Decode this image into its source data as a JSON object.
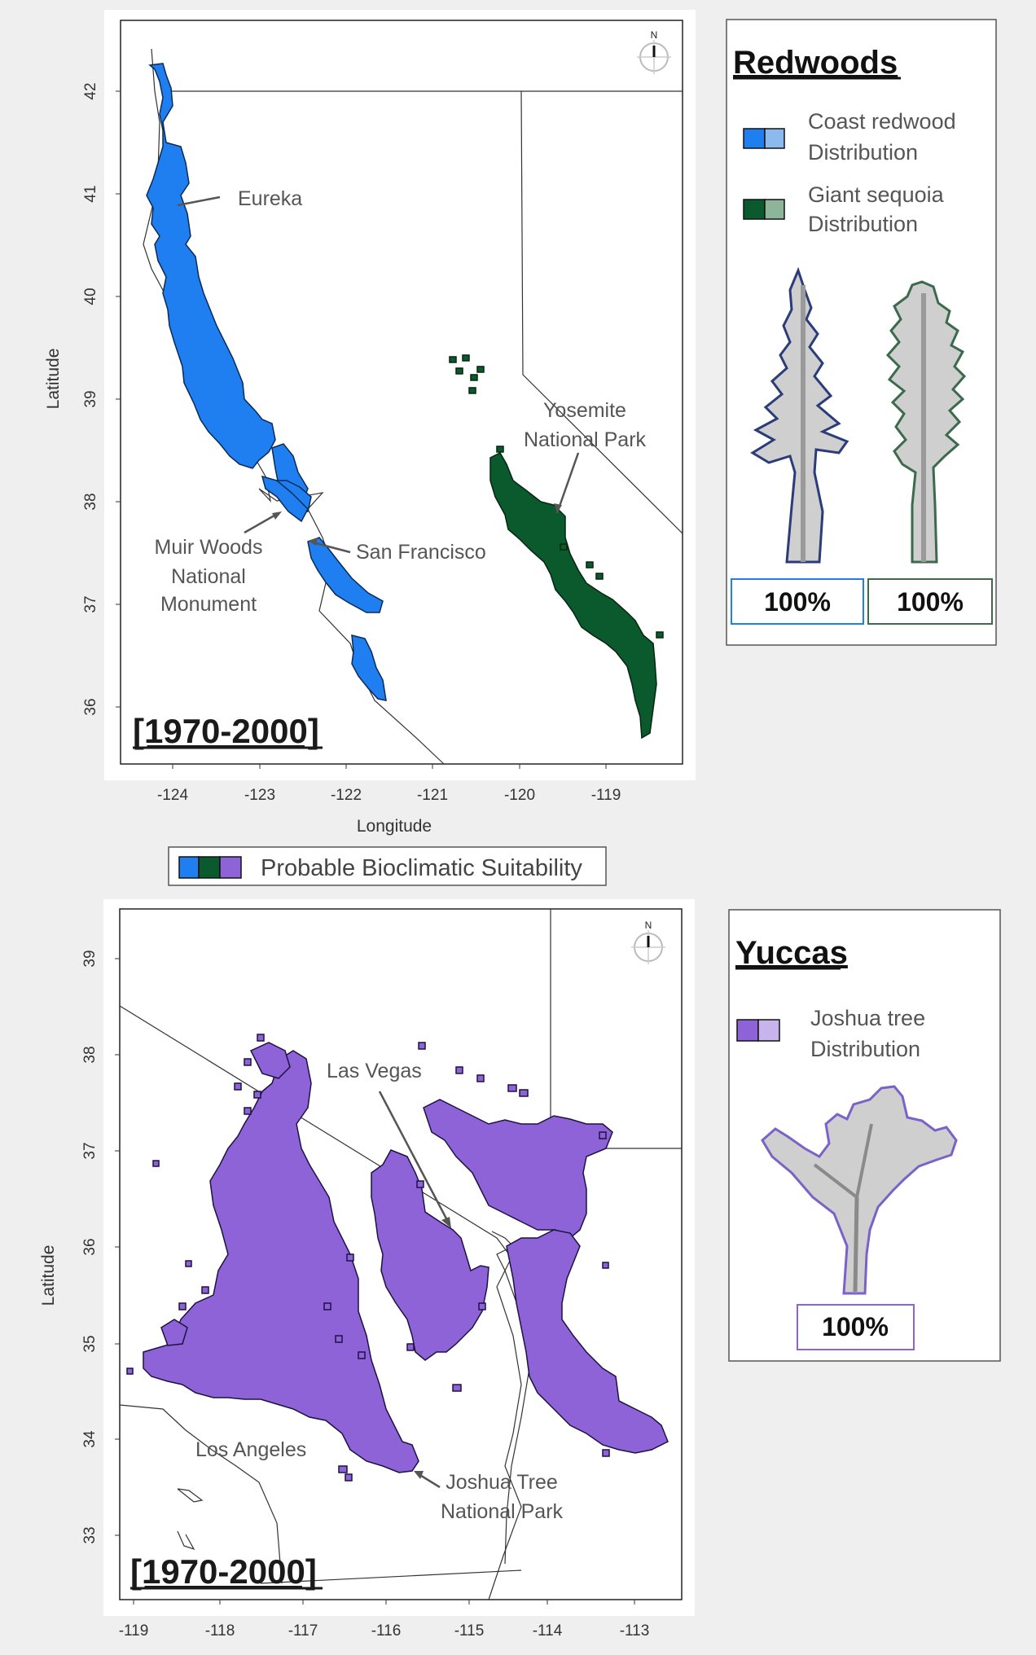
{
  "colors": {
    "coast_redwood": "#1f7ff0",
    "giant_sequoia": "#0b5a2e",
    "joshua_tree": "#8d63d7",
    "coast_redwood_light": "#8cb9ee",
    "giant_sequoia_light": "#8db59a",
    "joshua_tree_light": "#c7b4ec"
  },
  "map_top": {
    "lat_ticks": [
      "42",
      "41",
      "40",
      "39",
      "38",
      "37",
      "36"
    ],
    "lon_ticks": [
      "-124",
      "-123",
      "-122",
      "-121",
      "-120",
      "-119"
    ],
    "ylabel": "Latitude",
    "xlabel": "Longitude",
    "era": "[1970-2000]",
    "north_label": "N",
    "cities": {
      "eureka": "Eureka",
      "yosemite_1": "Yosemite",
      "yosemite_2": "National Park",
      "muir_1": "Muir Woods",
      "muir_2": "National",
      "muir_3": "Monument",
      "sf": "San Francisco"
    }
  },
  "legend_bar": {
    "label": "Probable Bioclimatic Suitability"
  },
  "panel_redwoods": {
    "title": "Redwoods",
    "item1_line1": "Coast redwood",
    "item1_line2": "Distribution",
    "item2_line1": "Giant sequoia",
    "item2_line2": "Distribution",
    "pct1": "100%",
    "pct2": "100%"
  },
  "map_bottom": {
    "lat_ticks": [
      "39",
      "38",
      "37",
      "36",
      "35",
      "34",
      "33"
    ],
    "lon_ticks": [
      "-119",
      "-118",
      "-117",
      "-116",
      "-115",
      "-114",
      "-113"
    ],
    "ylabel": "Latitude",
    "era": "[1970-2000]",
    "north_label": "N",
    "cities": {
      "las_vegas": "Las Vegas",
      "la": "Los Angeles",
      "jt_1": "Joshua Tree",
      "jt_2": "National Park"
    }
  },
  "panel_yuccas": {
    "title": "Yuccas",
    "item1_line1": "Joshua tree",
    "item1_line2": "Distribution",
    "pct": "100%"
  }
}
